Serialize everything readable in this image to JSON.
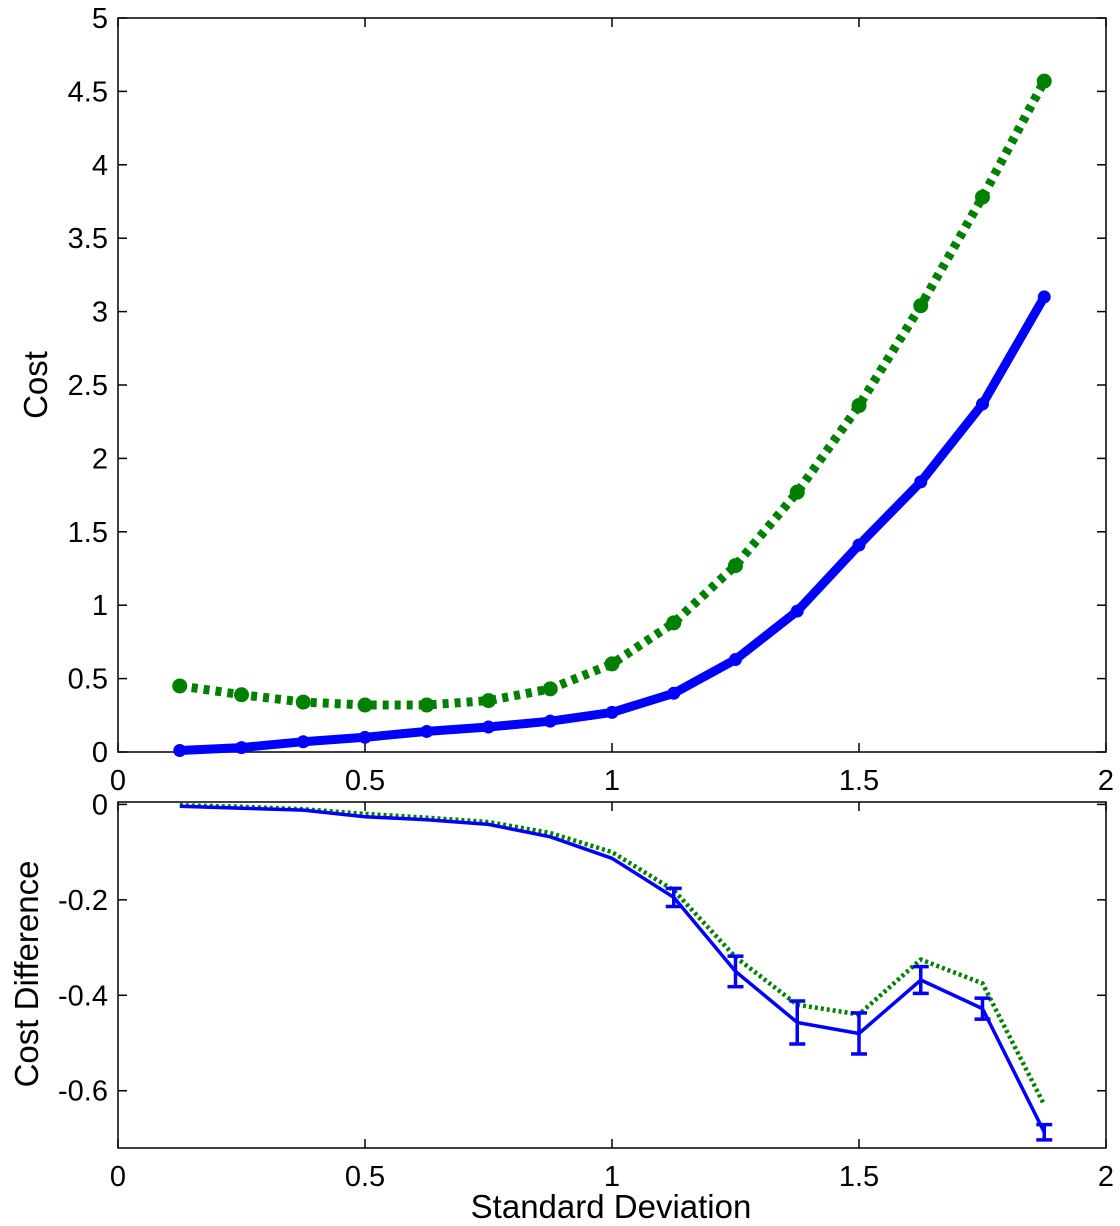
{
  "chart_data": [
    {
      "type": "line",
      "title": "",
      "xlabel": "",
      "ylabel": "Cost",
      "xlim": [
        0,
        2
      ],
      "ylim": [
        0,
        5
      ],
      "xticks": [
        0,
        0.5,
        1,
        1.5,
        2
      ],
      "xtick_labels": [
        "0",
        "0.5",
        "1",
        "1.5",
        "2"
      ],
      "yticks": [
        0,
        0.5,
        1,
        1.5,
        2,
        2.5,
        3,
        3.5,
        4,
        4.5,
        5
      ],
      "ytick_labels": [
        "0",
        "0.5",
        "1",
        "1.5",
        "2",
        "2.5",
        "3",
        "3.5",
        "4",
        "4.5",
        "5"
      ],
      "grid": false,
      "series": [
        {
          "name": "green dotted",
          "color": "#008000",
          "style": "dotted",
          "x": [
            0.125,
            0.25,
            0.375,
            0.5,
            0.625,
            0.75,
            0.875,
            1.0,
            1.125,
            1.25,
            1.375,
            1.5,
            1.625,
            1.75,
            1.875
          ],
          "y": [
            0.45,
            0.39,
            0.34,
            0.32,
            0.32,
            0.35,
            0.43,
            0.6,
            0.88,
            1.27,
            1.77,
            2.36,
            3.04,
            3.78,
            4.57
          ]
        },
        {
          "name": "blue solid",
          "color": "#0000ff",
          "style": "solid",
          "x": [
            0.125,
            0.25,
            0.375,
            0.5,
            0.625,
            0.75,
            0.875,
            1.0,
            1.125,
            1.25,
            1.375,
            1.5,
            1.625,
            1.75,
            1.875
          ],
          "y": [
            0.01,
            0.03,
            0.07,
            0.1,
            0.14,
            0.17,
            0.21,
            0.27,
            0.4,
            0.63,
            0.96,
            1.41,
            1.84,
            2.37,
            3.1
          ]
        }
      ]
    },
    {
      "type": "line",
      "title": "",
      "xlabel": "Standard Deviation",
      "ylabel": "Cost Difference",
      "xlim": [
        0,
        2
      ],
      "ylim": [
        -0.72,
        0.005
      ],
      "xticks": [
        0,
        0.5,
        1,
        1.5,
        2
      ],
      "xtick_labels": [
        "0",
        "0.5",
        "1",
        "1.5",
        "2"
      ],
      "yticks": [
        0,
        -0.2,
        -0.4,
        -0.6
      ],
      "ytick_labels": [
        "0",
        "-0.2",
        "-0.4",
        "-0.6"
      ],
      "grid": false,
      "series": [
        {
          "name": "green dotted",
          "color": "#008000",
          "style": "dotted",
          "x": [
            0.125,
            0.25,
            0.375,
            0.5,
            0.625,
            0.75,
            0.875,
            1.0,
            1.125,
            1.25,
            1.375,
            1.5,
            1.625,
            1.75,
            1.875
          ],
          "y": [
            -0.002,
            -0.005,
            -0.01,
            -0.02,
            -0.028,
            -0.037,
            -0.06,
            -0.1,
            -0.18,
            -0.32,
            -0.42,
            -0.44,
            -0.325,
            -0.375,
            -0.63
          ]
        },
        {
          "name": "blue solid",
          "color": "#0000ff",
          "style": "solid",
          "x": [
            0.125,
            0.25,
            0.375,
            0.5,
            0.625,
            0.75,
            0.875,
            1.0,
            1.125,
            1.25,
            1.375,
            1.5,
            1.625,
            1.75,
            1.875
          ],
          "y": [
            -0.004,
            -0.008,
            -0.012,
            -0.026,
            -0.032,
            -0.042,
            -0.068,
            -0.113,
            -0.195,
            -0.35,
            -0.457,
            -0.48,
            -0.368,
            -0.428,
            -0.687
          ],
          "error_bars": [
            {
              "x": 1.125,
              "y": -0.195,
              "lower": -0.214,
              "upper": -0.176
            },
            {
              "x": 1.25,
              "y": -0.35,
              "lower": -0.382,
              "upper": -0.318
            },
            {
              "x": 1.375,
              "y": -0.457,
              "lower": -0.502,
              "upper": -0.412
            },
            {
              "x": 1.5,
              "y": -0.48,
              "lower": -0.523,
              "upper": -0.437
            },
            {
              "x": 1.625,
              "y": -0.368,
              "lower": -0.396,
              "upper": -0.34
            },
            {
              "x": 1.75,
              "y": -0.428,
              "lower": -0.45,
              "upper": -0.406
            },
            {
              "x": 1.875,
              "y": -0.687,
              "lower": -0.703,
              "upper": -0.671
            }
          ]
        }
      ]
    }
  ]
}
